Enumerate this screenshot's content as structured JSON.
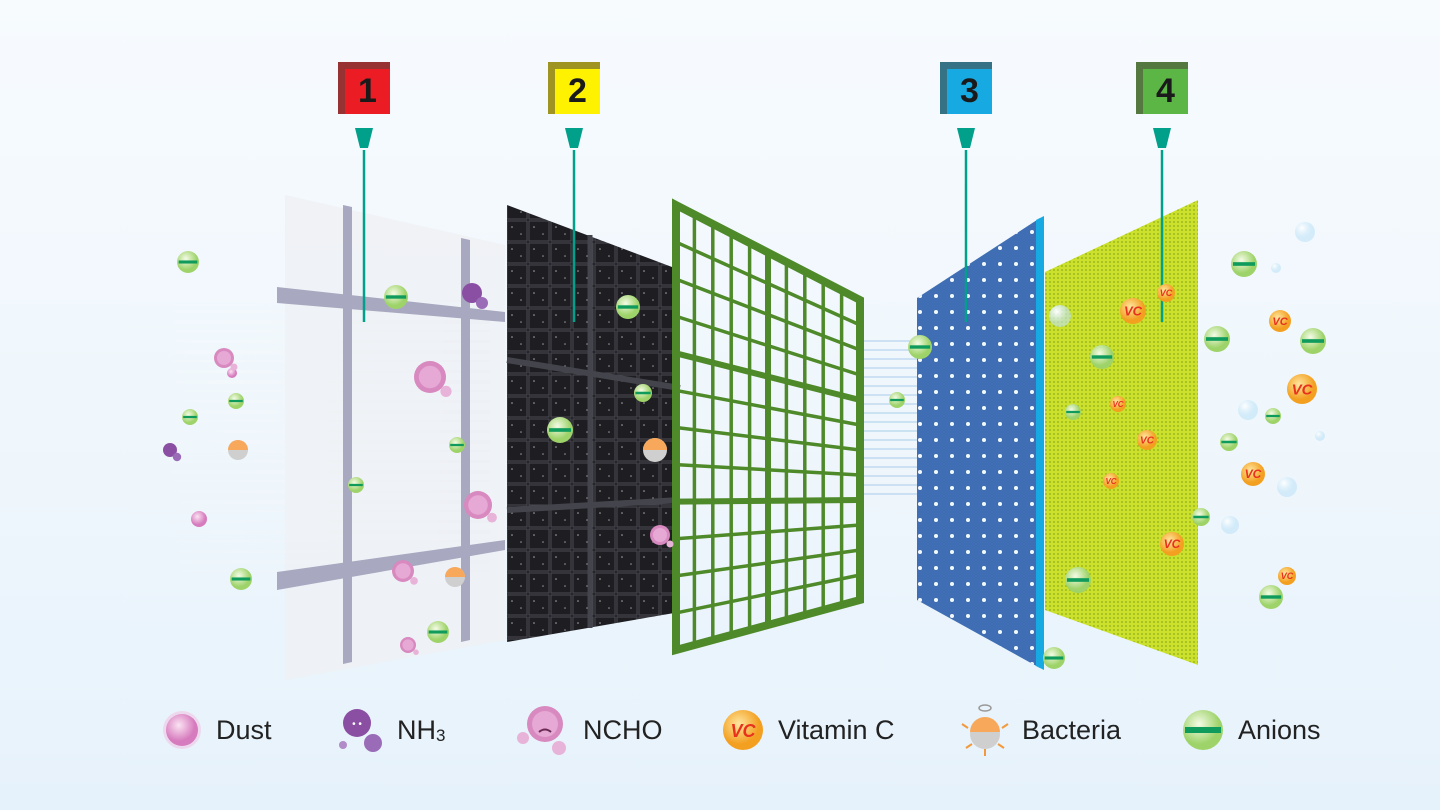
{
  "markers": [
    {
      "number": "1",
      "color": "#ec1c24"
    },
    {
      "number": "2",
      "color": "#fff200"
    },
    {
      "number": "3",
      "color": "#17a9e1"
    },
    {
      "number": "4",
      "color": "#5cb645"
    }
  ],
  "colors": {
    "pointer": "#00a08a",
    "panel3": "#3f6eb4",
    "panel4": "#c9e021",
    "grid": "#4f8a2a",
    "panel2": "#1d1d22"
  },
  "legend": [
    {
      "label": "Dust",
      "icon": "dust-icon"
    },
    {
      "label": "NH",
      "sub": "3",
      "icon": "nh3-icon"
    },
    {
      "label": "NCHO",
      "icon": "ncho-icon"
    },
    {
      "label": "Vitamin C",
      "icon": "vitamin-c-icon",
      "badge": "VC"
    },
    {
      "label": "Bacteria",
      "icon": "bacteria-icon"
    },
    {
      "label": "Anions",
      "icon": "anion-icon"
    }
  ]
}
